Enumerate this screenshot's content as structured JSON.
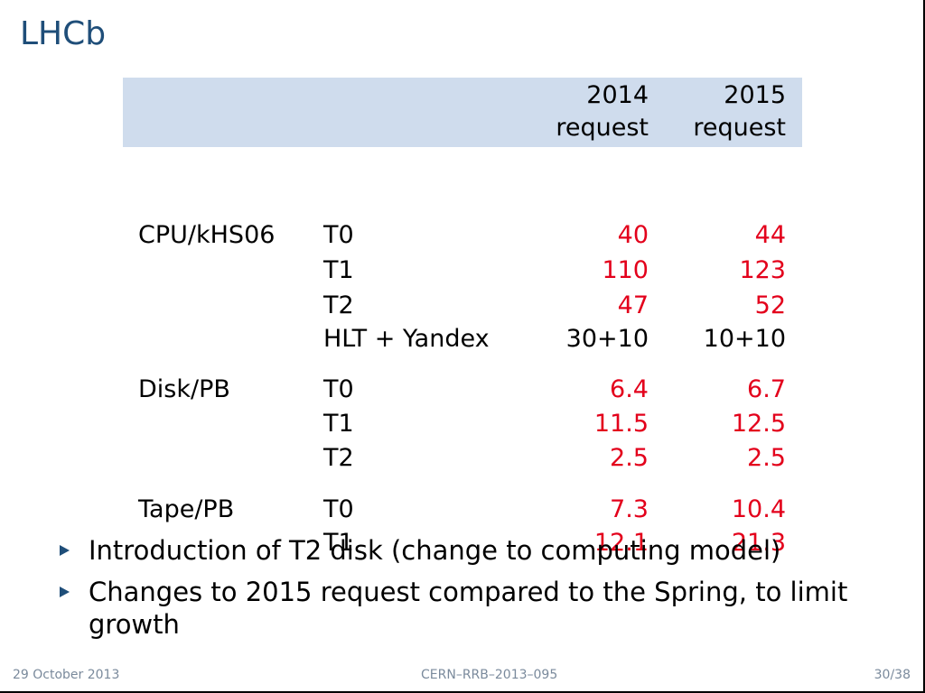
{
  "slide": {
    "title": "LHCb"
  },
  "table": {
    "header": {
      "col2014_line1": "2014",
      "col2014_line2": "request",
      "col2015_line1": "2015",
      "col2015_line2": "request"
    },
    "rows": [
      {
        "category": "CPU/kHS06",
        "tier": "T0",
        "v2014": "40",
        "v2015": "44",
        "highlight": true
      },
      {
        "category": "",
        "tier": "T1",
        "v2014": "110",
        "v2015": "123",
        "highlight": true
      },
      {
        "category": "",
        "tier": "T2",
        "v2014": "47",
        "v2015": "52",
        "highlight": true
      },
      {
        "category": "",
        "tier": "HLT + Yandex",
        "v2014": "30+10",
        "v2015": "10+10",
        "highlight": false
      },
      {
        "category": "Disk/PB",
        "tier": "T0",
        "v2014": "6.4",
        "v2015": "6.7",
        "highlight": true
      },
      {
        "category": "",
        "tier": "T1",
        "v2014": "11.5",
        "v2015": "12.5",
        "highlight": true
      },
      {
        "category": "",
        "tier": "T2",
        "v2014": "2.5",
        "v2015": "2.5",
        "highlight": true
      },
      {
        "category": "Tape/PB",
        "tier": "T0",
        "v2014": "7.3",
        "v2015": "10.4",
        "highlight": true
      },
      {
        "category": "",
        "tier": "T1",
        "v2014": "12.1",
        "v2015": "21.3",
        "highlight": true
      }
    ]
  },
  "bullets": [
    "Introduction of T2 disk (change to computing model)",
    "Changes to 2015 request compared to the Spring, to limit growth"
  ],
  "footer": {
    "date": "29 October 2013",
    "reference": "CERN–RRB–2013–095",
    "page": "30/38"
  },
  "colors": {
    "title": "#1f4e79",
    "header_bg": "#cfdced",
    "value_red": "#e3001b",
    "footer_text": "#7a8a9c"
  }
}
